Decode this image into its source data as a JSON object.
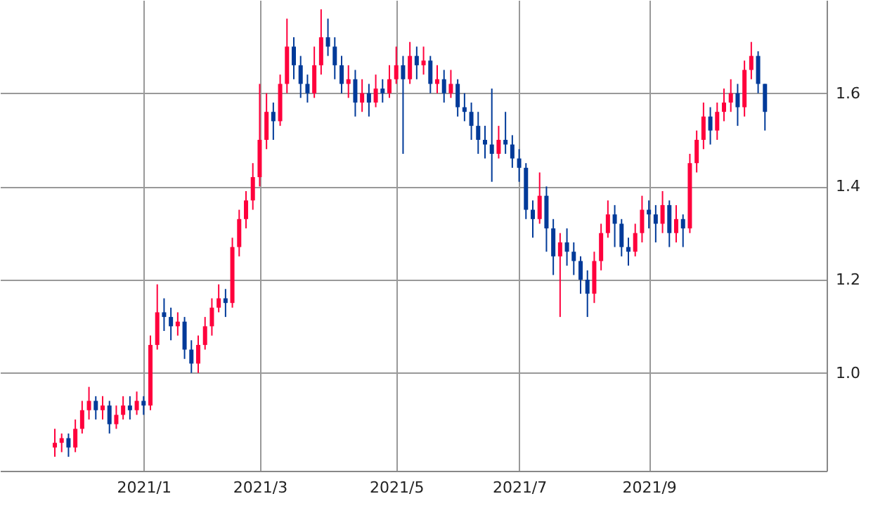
{
  "chart_data": {
    "type": "candlestick",
    "categories": [
      null,
      null,
      null,
      null,
      null,
      null,
      null,
      null,
      null,
      null,
      null,
      null,
      null,
      "2021/1",
      null,
      null,
      null,
      null,
      null,
      null,
      null,
      null,
      null,
      null,
      null,
      null,
      null,
      null,
      null,
      null,
      "2021/3",
      null,
      null,
      null,
      null,
      null,
      null,
      null,
      null,
      null,
      null,
      null,
      null,
      null,
      null,
      null,
      null,
      null,
      null,
      null,
      "2021/5",
      null,
      null,
      null,
      null,
      null,
      null,
      null,
      null,
      null,
      null,
      null,
      null,
      null,
      null,
      null,
      null,
      null,
      "2021/7",
      null,
      null,
      null,
      null,
      null,
      null,
      null,
      null,
      null,
      null,
      null,
      null,
      null,
      null,
      null,
      null,
      null,
      null,
      "2021/9",
      null,
      null,
      null,
      null,
      null,
      null,
      null,
      null,
      null,
      null,
      null,
      null,
      null,
      null,
      null,
      null,
      null
    ],
    "ohlc": [
      [
        0.84,
        0.88,
        0.82,
        0.85
      ],
      [
        0.85,
        0.87,
        0.83,
        0.86
      ],
      [
        0.86,
        0.87,
        0.82,
        0.84
      ],
      [
        0.84,
        0.9,
        0.83,
        0.88
      ],
      [
        0.88,
        0.94,
        0.87,
        0.92
      ],
      [
        0.92,
        0.97,
        0.9,
        0.94
      ],
      [
        0.94,
        0.95,
        0.9,
        0.92
      ],
      [
        0.92,
        0.95,
        0.9,
        0.93
      ],
      [
        0.93,
        0.94,
        0.87,
        0.89
      ],
      [
        0.89,
        0.93,
        0.88,
        0.91
      ],
      [
        0.91,
        0.95,
        0.9,
        0.93
      ],
      [
        0.93,
        0.95,
        0.9,
        0.92
      ],
      [
        0.92,
        0.96,
        0.91,
        0.94
      ],
      [
        0.94,
        0.95,
        0.91,
        0.93
      ],
      [
        0.93,
        1.08,
        0.92,
        1.06
      ],
      [
        1.06,
        1.19,
        1.05,
        1.13
      ],
      [
        1.13,
        1.16,
        1.09,
        1.12
      ],
      [
        1.12,
        1.14,
        1.07,
        1.1
      ],
      [
        1.1,
        1.13,
        1.08,
        1.11
      ],
      [
        1.11,
        1.12,
        1.03,
        1.05
      ],
      [
        1.05,
        1.07,
        1.0,
        1.02
      ],
      [
        1.02,
        1.08,
        1.0,
        1.06
      ],
      [
        1.06,
        1.12,
        1.05,
        1.1
      ],
      [
        1.1,
        1.16,
        1.08,
        1.14
      ],
      [
        1.14,
        1.19,
        1.13,
        1.16
      ],
      [
        1.16,
        1.18,
        1.12,
        1.15
      ],
      [
        1.15,
        1.29,
        1.14,
        1.27
      ],
      [
        1.27,
        1.35,
        1.25,
        1.33
      ],
      [
        1.33,
        1.39,
        1.31,
        1.37
      ],
      [
        1.37,
        1.45,
        1.35,
        1.42
      ],
      [
        1.42,
        1.62,
        1.4,
        1.5
      ],
      [
        1.5,
        1.6,
        1.48,
        1.56
      ],
      [
        1.56,
        1.58,
        1.5,
        1.54
      ],
      [
        1.54,
        1.64,
        1.53,
        1.62
      ],
      [
        1.62,
        1.76,
        1.6,
        1.7
      ],
      [
        1.7,
        1.72,
        1.63,
        1.66
      ],
      [
        1.66,
        1.68,
        1.59,
        1.62
      ],
      [
        1.62,
        1.64,
        1.58,
        1.6
      ],
      [
        1.6,
        1.7,
        1.59,
        1.66
      ],
      [
        1.66,
        1.78,
        1.64,
        1.72
      ],
      [
        1.72,
        1.76,
        1.68,
        1.7
      ],
      [
        1.7,
        1.72,
        1.63,
        1.66
      ],
      [
        1.66,
        1.68,
        1.6,
        1.62
      ],
      [
        1.62,
        1.66,
        1.59,
        1.63
      ],
      [
        1.63,
        1.65,
        1.55,
        1.58
      ],
      [
        1.58,
        1.63,
        1.56,
        1.6
      ],
      [
        1.6,
        1.62,
        1.55,
        1.58
      ],
      [
        1.58,
        1.64,
        1.57,
        1.61
      ],
      [
        1.61,
        1.63,
        1.58,
        1.6
      ],
      [
        1.6,
        1.66,
        1.59,
        1.63
      ],
      [
        1.63,
        1.7,
        1.62,
        1.66
      ],
      [
        1.66,
        1.68,
        1.47,
        1.63
      ],
      [
        1.63,
        1.71,
        1.62,
        1.68
      ],
      [
        1.68,
        1.7,
        1.63,
        1.66
      ],
      [
        1.66,
        1.7,
        1.64,
        1.67
      ],
      [
        1.67,
        1.68,
        1.6,
        1.62
      ],
      [
        1.62,
        1.66,
        1.6,
        1.63
      ],
      [
        1.63,
        1.65,
        1.58,
        1.6
      ],
      [
        1.6,
        1.65,
        1.59,
        1.62
      ],
      [
        1.62,
        1.63,
        1.55,
        1.57
      ],
      [
        1.57,
        1.6,
        1.54,
        1.56
      ],
      [
        1.56,
        1.58,
        1.5,
        1.53
      ],
      [
        1.53,
        1.56,
        1.47,
        1.5
      ],
      [
        1.5,
        1.53,
        1.46,
        1.49
      ],
      [
        1.49,
        1.61,
        1.41,
        1.47
      ],
      [
        1.47,
        1.53,
        1.46,
        1.5
      ],
      [
        1.5,
        1.56,
        1.47,
        1.49
      ],
      [
        1.49,
        1.51,
        1.44,
        1.46
      ],
      [
        1.46,
        1.48,
        1.41,
        1.44
      ],
      [
        1.44,
        1.45,
        1.33,
        1.35
      ],
      [
        1.35,
        1.37,
        1.29,
        1.33
      ],
      [
        1.33,
        1.43,
        1.32,
        1.38
      ],
      [
        1.38,
        1.4,
        1.26,
        1.31
      ],
      [
        1.31,
        1.33,
        1.21,
        1.25
      ],
      [
        1.25,
        1.3,
        1.12,
        1.28
      ],
      [
        1.28,
        1.31,
        1.23,
        1.26
      ],
      [
        1.26,
        1.28,
        1.21,
        1.24
      ],
      [
        1.24,
        1.25,
        1.17,
        1.2
      ],
      [
        1.2,
        1.22,
        1.12,
        1.17
      ],
      [
        1.17,
        1.26,
        1.15,
        1.24
      ],
      [
        1.24,
        1.32,
        1.22,
        1.3
      ],
      [
        1.3,
        1.37,
        1.29,
        1.34
      ],
      [
        1.34,
        1.36,
        1.27,
        1.32
      ],
      [
        1.32,
        1.33,
        1.25,
        1.27
      ],
      [
        1.27,
        1.29,
        1.23,
        1.26
      ],
      [
        1.26,
        1.32,
        1.25,
        1.3
      ],
      [
        1.3,
        1.38,
        1.28,
        1.35
      ],
      [
        1.35,
        1.37,
        1.31,
        1.34
      ],
      [
        1.34,
        1.36,
        1.28,
        1.32
      ],
      [
        1.32,
        1.39,
        1.3,
        1.36
      ],
      [
        1.36,
        1.37,
        1.27,
        1.3
      ],
      [
        1.3,
        1.36,
        1.28,
        1.33
      ],
      [
        1.33,
        1.34,
        1.27,
        1.31
      ],
      [
        1.31,
        1.47,
        1.3,
        1.45
      ],
      [
        1.45,
        1.52,
        1.43,
        1.5
      ],
      [
        1.5,
        1.58,
        1.48,
        1.55
      ],
      [
        1.55,
        1.57,
        1.49,
        1.52
      ],
      [
        1.52,
        1.58,
        1.5,
        1.56
      ],
      [
        1.56,
        1.61,
        1.54,
        1.58
      ],
      [
        1.58,
        1.63,
        1.56,
        1.6
      ],
      [
        1.6,
        1.62,
        1.53,
        1.57
      ],
      [
        1.57,
        1.67,
        1.55,
        1.65
      ],
      [
        1.65,
        1.71,
        1.63,
        1.68
      ],
      [
        1.68,
        1.69,
        1.6,
        1.62
      ],
      [
        1.62,
        1.62,
        1.52,
        1.56
      ]
    ],
    "colors": [
      "#ff003c",
      "#ff003c",
      "#003a99",
      "#ff003c",
      "#ff003c",
      "#ff003c",
      "#003a99",
      "#ff003c",
      "#003a99",
      "#ff003c",
      "#ff003c",
      "#003a99",
      "#ff003c",
      "#003a99",
      "#ff003c",
      "#ff003c",
      "#003a99",
      "#003a99",
      "#ff003c",
      "#003a99",
      "#003a99",
      "#ff003c",
      "#ff003c",
      "#ff003c",
      "#ff003c",
      "#003a99",
      "#ff003c",
      "#ff003c",
      "#ff003c",
      "#ff003c",
      "#ff003c",
      "#ff003c",
      "#003a99",
      "#ff003c",
      "#ff003c",
      "#003a99",
      "#003a99",
      "#003a99",
      "#ff003c",
      "#ff003c",
      "#003a99",
      "#003a99",
      "#003a99",
      "#ff003c",
      "#003a99",
      "#ff003c",
      "#003a99",
      "#ff003c",
      "#003a99",
      "#ff003c",
      "#ff003c",
      "#003a99",
      "#ff003c",
      "#003a99",
      "#ff003c",
      "#003a99",
      "#ff003c",
      "#003a99",
      "#ff003c",
      "#003a99",
      "#003a99",
      "#003a99",
      "#003a99",
      "#003a99",
      "#003a99",
      "#ff003c",
      "#003a99",
      "#003a99",
      "#003a99",
      "#003a99",
      "#003a99",
      "#ff003c",
      "#003a99",
      "#003a99",
      "#ff003c",
      "#003a99",
      "#003a99",
      "#003a99",
      "#003a99",
      "#ff003c",
      "#ff003c",
      "#ff003c",
      "#003a99",
      "#003a99",
      "#003a99",
      "#ff003c",
      "#ff003c",
      "#003a99",
      "#003a99",
      "#ff003c",
      "#003a99",
      "#ff003c",
      "#003a99",
      "#ff003c",
      "#ff003c",
      "#ff003c",
      "#003a99",
      "#ff003c",
      "#ff003c",
      "#ff003c",
      "#003a99",
      "#ff003c",
      "#ff003c",
      "#003a99",
      "#003a99"
    ],
    "ylim": [
      0.79,
      1.8
    ],
    "yticks": [
      {
        "value": 1.0,
        "label": "1.0"
      },
      1.2,
      1.4,
      1.6
    ],
    "grid": true
  }
}
